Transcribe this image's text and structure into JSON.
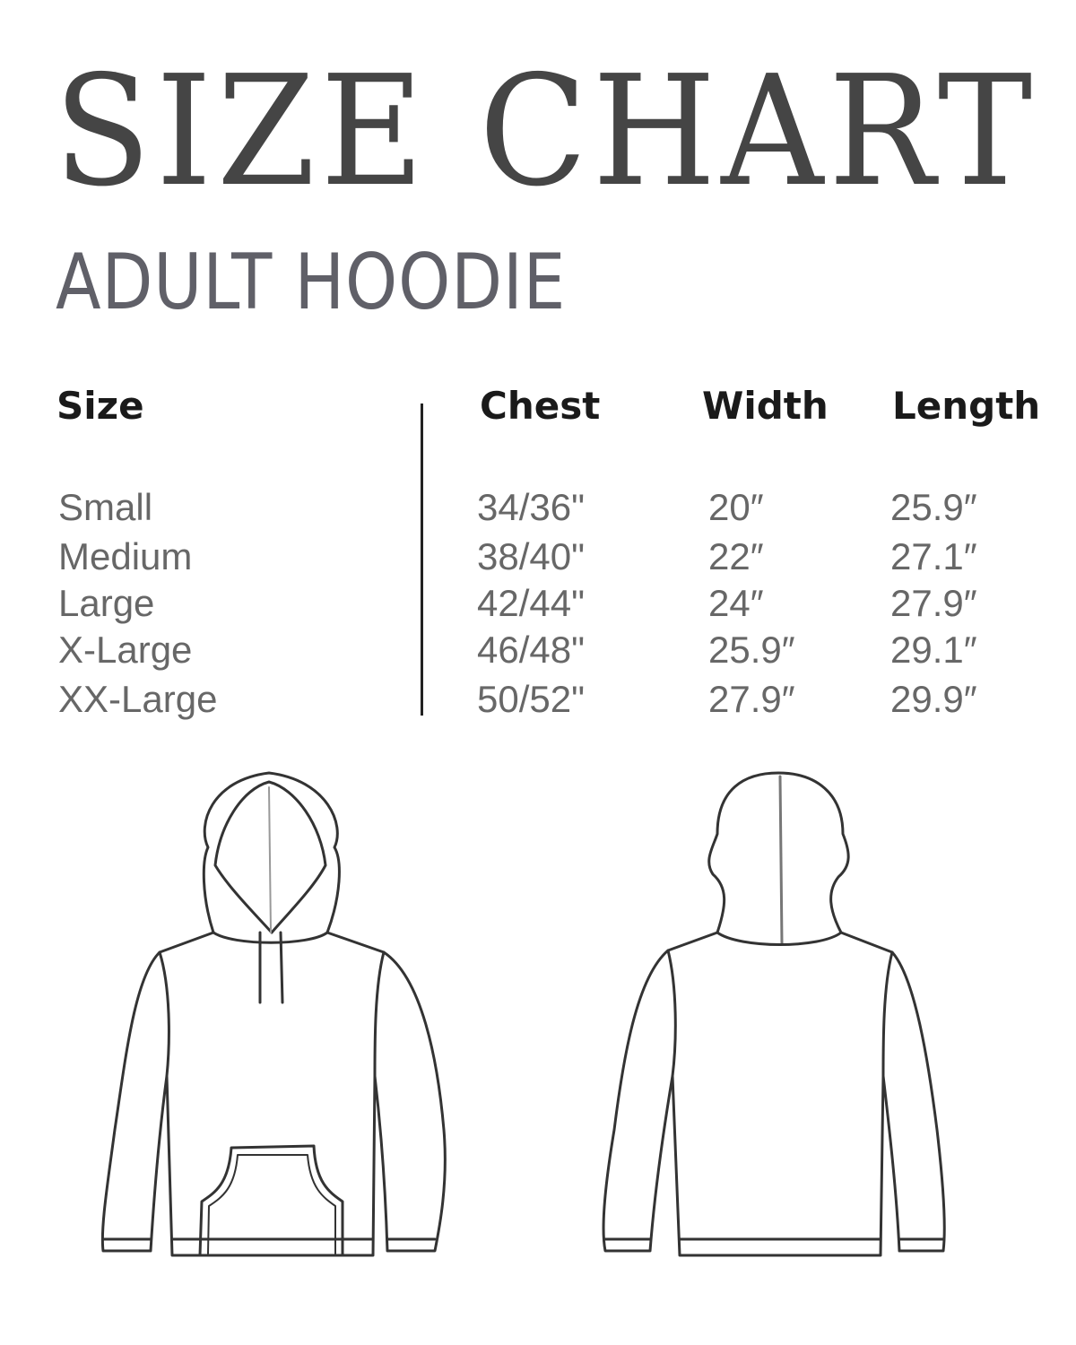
{
  "title": "SIZE CHART",
  "subtitle": "ADULT HOODIE",
  "table": {
    "headers": [
      "Size",
      "Chest",
      "Width",
      "Length"
    ],
    "rows": [
      {
        "size": "Small",
        "chest": "34/36\"",
        "width": "20″",
        "length": "25.9″"
      },
      {
        "size": "Medium",
        "chest": "38/40\"",
        "width": "22″",
        "length": "27.1″"
      },
      {
        "size": "Large",
        "chest": "42/44\"",
        "width": "24″",
        "length": "27.9″"
      },
      {
        "size": "X-Large",
        "chest": "46/48\"",
        "width": "25.9″",
        "length": "29.1″"
      },
      {
        "size": "XX-Large",
        "chest": "50/52\"",
        "width": "27.9″",
        "length": "29.9″"
      }
    ]
  },
  "illustrations": [
    "hoodie-front",
    "hoodie-back"
  ],
  "colors": {
    "title": "#454545",
    "subtitle": "#606068",
    "cell_text": "#676767",
    "header_text": "#1a1a1a"
  }
}
